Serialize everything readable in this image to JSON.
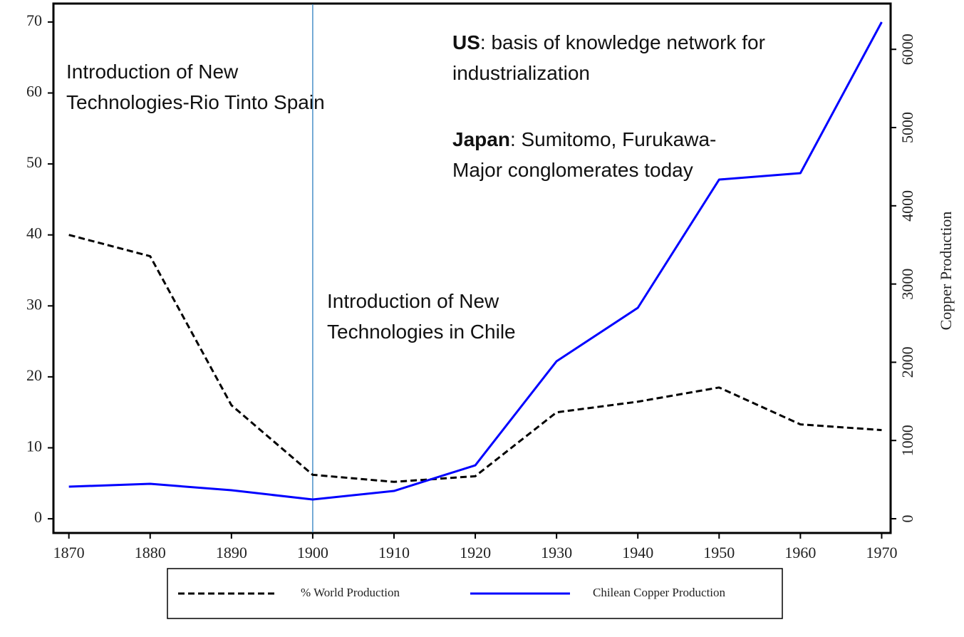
{
  "chart_data": {
    "type": "line",
    "y2_label": "Copper Production",
    "x": [
      1870,
      1880,
      1890,
      1900,
      1910,
      1920,
      1930,
      1940,
      1950,
      1960,
      1970
    ],
    "series": [
      {
        "name": "% World Production",
        "color": "#000000",
        "dash": true,
        "values": [
          40,
          37,
          16,
          6.2,
          5.2,
          6,
          15,
          16.5,
          18.5,
          13.3,
          12.5
        ]
      },
      {
        "name": "Chilean Copper Production",
        "color": "#0000ff",
        "axis": "y2",
        "values": [
          410,
          446,
          364,
          246,
          355,
          683,
          2013,
          2696,
          4335,
          4417,
          6348
        ]
      }
    ],
    "xlim": [
      1868.1,
      1971.1
    ],
    "xticks": [
      1870,
      1880,
      1890,
      1900,
      1910,
      1920,
      1930,
      1940,
      1950,
      1960,
      1970
    ],
    "ylim": [
      -2,
      72.6
    ],
    "yticks": [
      0,
      10,
      20,
      30,
      40,
      50,
      60,
      70
    ],
    "y2lim": [
      -182,
      6585
    ],
    "y2ticks": [
      0,
      1000,
      2000,
      3000,
      4000,
      5000,
      6000
    ],
    "vline_x": 1900,
    "vline_color": "#4a90c8",
    "annotations": [
      {
        "lines": [
          "Introduction of New",
          "Technologies-Rio Tinto Spain"
        ]
      },
      {
        "lines": [
          "Introduction of New",
          "Technologies in Chile"
        ]
      },
      {
        "label": "US",
        "lines": [
          ": basis of knowledge network for",
          "industrialization"
        ]
      },
      {
        "label": "Japan",
        "lines": [
          ": Sumitomo, Furukawa-",
          "Major conglomerates today"
        ]
      }
    ]
  }
}
